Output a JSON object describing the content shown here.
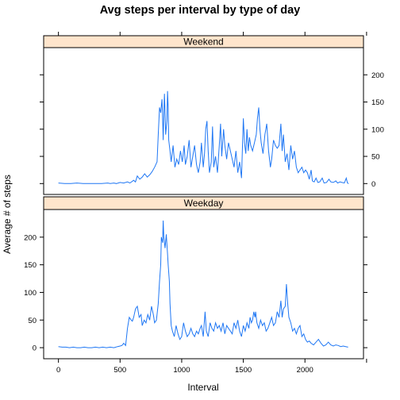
{
  "chart_data": {
    "type": "line",
    "title": "Avg steps per interval by type of day",
    "xlabel": "Interval",
    "ylabel": "Average # of steps",
    "xlim": [
      -120,
      2475
    ],
    "ylim": [
      -20,
      250
    ],
    "x_ticks": [
      0,
      500,
      1000,
      1500,
      2000
    ],
    "y_ticks": [
      0,
      50,
      100,
      150,
      200
    ],
    "grid": false,
    "line_color": "#1f77f4",
    "strip_color": "#ffe5cc",
    "panels": [
      {
        "name": "Weekend",
        "points": [
          [
            0,
            1
          ],
          [
            50,
            0
          ],
          [
            100,
            0
          ],
          [
            150,
            1
          ],
          [
            200,
            0
          ],
          [
            250,
            0
          ],
          [
            300,
            0
          ],
          [
            350,
            0
          ],
          [
            400,
            1
          ],
          [
            420,
            0
          ],
          [
            450,
            1
          ],
          [
            470,
            0
          ],
          [
            500,
            2
          ],
          [
            530,
            1
          ],
          [
            560,
            3
          ],
          [
            580,
            1
          ],
          [
            610,
            6
          ],
          [
            625,
            3
          ],
          [
            640,
            14
          ],
          [
            660,
            8
          ],
          [
            680,
            12
          ],
          [
            700,
            18
          ],
          [
            720,
            12
          ],
          [
            740,
            16
          ],
          [
            760,
            22
          ],
          [
            780,
            30
          ],
          [
            800,
            40
          ],
          [
            810,
            90
          ],
          [
            820,
            140
          ],
          [
            830,
            130
          ],
          [
            840,
            155
          ],
          [
            845,
            120
          ],
          [
            850,
            80
          ],
          [
            855,
            125
          ],
          [
            860,
            165
          ],
          [
            865,
            130
          ],
          [
            870,
            90
          ],
          [
            880,
            115
          ],
          [
            885,
            170
          ],
          [
            890,
            140
          ],
          [
            895,
            80
          ],
          [
            905,
            60
          ],
          [
            915,
            40
          ],
          [
            930,
            70
          ],
          [
            945,
            30
          ],
          [
            960,
            45
          ],
          [
            975,
            35
          ],
          [
            990,
            60
          ],
          [
            1005,
            40
          ],
          [
            1020,
            70
          ],
          [
            1030,
            35
          ],
          [
            1045,
            50
          ],
          [
            1060,
            80
          ],
          [
            1075,
            30
          ],
          [
            1090,
            50
          ],
          [
            1105,
            70
          ],
          [
            1120,
            35
          ],
          [
            1135,
            20
          ],
          [
            1150,
            40
          ],
          [
            1160,
            75
          ],
          [
            1175,
            30
          ],
          [
            1185,
            55
          ],
          [
            1195,
            100
          ],
          [
            1205,
            115
          ],
          [
            1215,
            60
          ],
          [
            1225,
            20
          ],
          [
            1240,
            40
          ],
          [
            1250,
            105
          ],
          [
            1260,
            30
          ],
          [
            1275,
            50
          ],
          [
            1290,
            20
          ],
          [
            1305,
            70
          ],
          [
            1315,
            110
          ],
          [
            1325,
            50
          ],
          [
            1340,
            100
          ],
          [
            1350,
            70
          ],
          [
            1365,
            45
          ],
          [
            1380,
            75
          ],
          [
            1395,
            60
          ],
          [
            1410,
            45
          ],
          [
            1425,
            30
          ],
          [
            1440,
            60
          ],
          [
            1455,
            20
          ],
          [
            1470,
            40
          ],
          [
            1485,
            10
          ],
          [
            1500,
            120
          ],
          [
            1510,
            75
          ],
          [
            1520,
            55
          ],
          [
            1530,
            100
          ],
          [
            1540,
            60
          ],
          [
            1550,
            85
          ],
          [
            1560,
            70
          ],
          [
            1575,
            60
          ],
          [
            1590,
            75
          ],
          [
            1605,
            90
          ],
          [
            1615,
            120
          ],
          [
            1625,
            140
          ],
          [
            1635,
            100
          ],
          [
            1645,
            75
          ],
          [
            1660,
            55
          ],
          [
            1675,
            90
          ],
          [
            1690,
            110
          ],
          [
            1705,
            60
          ],
          [
            1720,
            30
          ],
          [
            1730,
            45
          ],
          [
            1745,
            80
          ],
          [
            1760,
            70
          ],
          [
            1775,
            65
          ],
          [
            1790,
            70
          ],
          [
            1805,
            110
          ],
          [
            1815,
            60
          ],
          [
            1825,
            90
          ],
          [
            1840,
            40
          ],
          [
            1855,
            55
          ],
          [
            1870,
            25
          ],
          [
            1885,
            70
          ],
          [
            1900,
            45
          ],
          [
            1915,
            60
          ],
          [
            1930,
            30
          ],
          [
            1945,
            20
          ],
          [
            1960,
            25
          ],
          [
            1975,
            30
          ],
          [
            1990,
            20
          ],
          [
            2005,
            25
          ],
          [
            2020,
            20
          ],
          [
            2035,
            8
          ],
          [
            2050,
            25
          ],
          [
            2060,
            5
          ],
          [
            2075,
            3
          ],
          [
            2090,
            10
          ],
          [
            2105,
            2
          ],
          [
            2120,
            3
          ],
          [
            2140,
            10
          ],
          [
            2155,
            1
          ],
          [
            2175,
            2
          ],
          [
            2195,
            8
          ],
          [
            2210,
            3
          ],
          [
            2230,
            2
          ],
          [
            2250,
            5
          ],
          [
            2265,
            1
          ],
          [
            2285,
            3
          ],
          [
            2300,
            2
          ],
          [
            2320,
            1
          ],
          [
            2335,
            10
          ],
          [
            2345,
            1
          ],
          [
            2355,
            0
          ]
        ]
      },
      {
        "name": "Weekday",
        "points": [
          [
            0,
            2
          ],
          [
            30,
            1
          ],
          [
            60,
            1
          ],
          [
            90,
            0
          ],
          [
            120,
            1
          ],
          [
            150,
            0
          ],
          [
            180,
            0
          ],
          [
            210,
            1
          ],
          [
            240,
            0
          ],
          [
            270,
            0
          ],
          [
            300,
            1
          ],
          [
            330,
            0
          ],
          [
            360,
            1
          ],
          [
            390,
            0
          ],
          [
            420,
            1
          ],
          [
            450,
            0
          ],
          [
            480,
            2
          ],
          [
            500,
            3
          ],
          [
            515,
            4
          ],
          [
            530,
            8
          ],
          [
            545,
            4
          ],
          [
            560,
            35
          ],
          [
            575,
            55
          ],
          [
            590,
            50
          ],
          [
            600,
            48
          ],
          [
            610,
            55
          ],
          [
            625,
            70
          ],
          [
            640,
            75
          ],
          [
            655,
            55
          ],
          [
            670,
            60
          ],
          [
            680,
            40
          ],
          [
            695,
            50
          ],
          [
            710,
            45
          ],
          [
            725,
            60
          ],
          [
            740,
            50
          ],
          [
            755,
            75
          ],
          [
            770,
            60
          ],
          [
            780,
            45
          ],
          [
            795,
            50
          ],
          [
            810,
            80
          ],
          [
            820,
            120
          ],
          [
            830,
            150
          ],
          [
            835,
            200
          ],
          [
            845,
            190
          ],
          [
            850,
            230
          ],
          [
            855,
            200
          ],
          [
            865,
            180
          ],
          [
            875,
            205
          ],
          [
            885,
            170
          ],
          [
            890,
            150
          ],
          [
            900,
            120
          ],
          [
            905,
            80
          ],
          [
            915,
            40
          ],
          [
            925,
            30
          ],
          [
            940,
            20
          ],
          [
            955,
            40
          ],
          [
            970,
            25
          ],
          [
            985,
            15
          ],
          [
            1000,
            20
          ],
          [
            1015,
            45
          ],
          [
            1030,
            30
          ],
          [
            1045,
            20
          ],
          [
            1060,
            25
          ],
          [
            1075,
            35
          ],
          [
            1090,
            25
          ],
          [
            1105,
            20
          ],
          [
            1120,
            30
          ],
          [
            1135,
            25
          ],
          [
            1150,
            35
          ],
          [
            1160,
            40
          ],
          [
            1175,
            20
          ],
          [
            1190,
            65
          ],
          [
            1200,
            30
          ],
          [
            1215,
            20
          ],
          [
            1230,
            45
          ],
          [
            1245,
            35
          ],
          [
            1260,
            30
          ],
          [
            1275,
            45
          ],
          [
            1290,
            35
          ],
          [
            1305,
            40
          ],
          [
            1320,
            30
          ],
          [
            1335,
            45
          ],
          [
            1350,
            25
          ],
          [
            1365,
            40
          ],
          [
            1380,
            35
          ],
          [
            1395,
            30
          ],
          [
            1410,
            25
          ],
          [
            1425,
            45
          ],
          [
            1440,
            35
          ],
          [
            1455,
            50
          ],
          [
            1470,
            30
          ],
          [
            1485,
            20
          ],
          [
            1500,
            40
          ],
          [
            1515,
            30
          ],
          [
            1530,
            45
          ],
          [
            1545,
            35
          ],
          [
            1555,
            55
          ],
          [
            1565,
            45
          ],
          [
            1575,
            50
          ],
          [
            1585,
            65
          ],
          [
            1595,
            55
          ],
          [
            1600,
            65
          ],
          [
            1610,
            45
          ],
          [
            1625,
            35
          ],
          [
            1640,
            50
          ],
          [
            1655,
            40
          ],
          [
            1670,
            45
          ],
          [
            1685,
            30
          ],
          [
            1700,
            35
          ],
          [
            1715,
            45
          ],
          [
            1730,
            55
          ],
          [
            1745,
            40
          ],
          [
            1760,
            45
          ],
          [
            1775,
            65
          ],
          [
            1790,
            55
          ],
          [
            1805,
            85
          ],
          [
            1815,
            55
          ],
          [
            1825,
            70
          ],
          [
            1840,
            75
          ],
          [
            1850,
            115
          ],
          [
            1860,
            80
          ],
          [
            1870,
            55
          ],
          [
            1885,
            45
          ],
          [
            1900,
            30
          ],
          [
            1915,
            35
          ],
          [
            1930,
            25
          ],
          [
            1945,
            35
          ],
          [
            1960,
            40
          ],
          [
            1975,
            20
          ],
          [
            1990,
            25
          ],
          [
            2005,
            15
          ],
          [
            2020,
            10
          ],
          [
            2035,
            12
          ],
          [
            2050,
            8
          ],
          [
            2070,
            5
          ],
          [
            2090,
            10
          ],
          [
            2110,
            15
          ],
          [
            2130,
            8
          ],
          [
            2150,
            3
          ],
          [
            2170,
            5
          ],
          [
            2190,
            10
          ],
          [
            2210,
            5
          ],
          [
            2230,
            3
          ],
          [
            2250,
            5
          ],
          [
            2270,
            4
          ],
          [
            2290,
            2
          ],
          [
            2310,
            3
          ],
          [
            2330,
            2
          ],
          [
            2350,
            1
          ]
        ]
      }
    ]
  }
}
